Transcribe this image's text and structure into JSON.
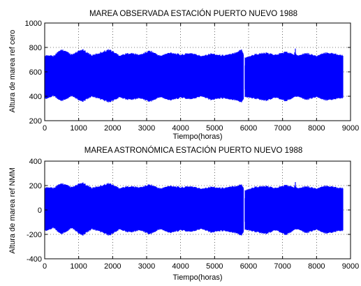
{
  "chart_data": [
    {
      "type": "line",
      "title": "MAREA OBSERVADA ESTACIÓN PUERTO NUEVO 1988",
      "xlabel": "Tiempo(horas)",
      "ylabel": "Altura de marea ref cero",
      "xlim": [
        0,
        9000
      ],
      "ylim": [
        200,
        1000
      ],
      "xticks": [
        "0",
        "1000",
        "2000",
        "3000",
        "4000",
        "5000",
        "6000",
        "7000",
        "8000",
        "9000"
      ],
      "yticks": [
        "200",
        "400",
        "600",
        "800",
        "1000"
      ],
      "grid": true,
      "color": "#0000ff",
      "x_range": [
        0,
        8784
      ],
      "mean": 550,
      "envelope_upper": [
        [
          0,
          740
        ],
        [
          250,
          735
        ],
        [
          500,
          790
        ],
        [
          800,
          745
        ],
        [
          1100,
          790
        ],
        [
          1400,
          740
        ],
        [
          1650,
          765
        ],
        [
          1900,
          790
        ],
        [
          2200,
          740
        ],
        [
          2500,
          760
        ],
        [
          2800,
          745
        ],
        [
          3100,
          780
        ],
        [
          3400,
          735
        ],
        [
          3700,
          765
        ],
        [
          4000,
          745
        ],
        [
          4300,
          760
        ],
        [
          4600,
          735
        ],
        [
          4900,
          755
        ],
        [
          5200,
          740
        ],
        [
          5500,
          750
        ],
        [
          5800,
          790
        ],
        [
          5900,
          720
        ],
        [
          6200,
          750
        ],
        [
          6500,
          760
        ],
        [
          6800,
          745
        ],
        [
          7100,
          770
        ],
        [
          7350,
          745
        ],
        [
          7370,
          820
        ],
        [
          7400,
          740
        ],
        [
          7700,
          760
        ],
        [
          8000,
          735
        ],
        [
          8300,
          765
        ],
        [
          8600,
          750
        ],
        [
          8784,
          740
        ]
      ],
      "envelope_lower": [
        [
          0,
          370
        ],
        [
          250,
          400
        ],
        [
          500,
          355
        ],
        [
          800,
          400
        ],
        [
          1100,
          350
        ],
        [
          1400,
          395
        ],
        [
          1650,
          370
        ],
        [
          1900,
          345
        ],
        [
          2200,
          385
        ],
        [
          2500,
          365
        ],
        [
          2800,
          380
        ],
        [
          3100,
          350
        ],
        [
          3400,
          390
        ],
        [
          3700,
          360
        ],
        [
          4000,
          385
        ],
        [
          4300,
          370
        ],
        [
          4600,
          395
        ],
        [
          4900,
          365
        ],
        [
          5200,
          380
        ],
        [
          5500,
          370
        ],
        [
          5800,
          345
        ],
        [
          5900,
          390
        ],
        [
          6200,
          375
        ],
        [
          6500,
          360
        ],
        [
          6800,
          385
        ],
        [
          7100,
          355
        ],
        [
          7400,
          395
        ],
        [
          7700,
          365
        ],
        [
          8000,
          390
        ],
        [
          8300,
          360
        ],
        [
          8600,
          375
        ],
        [
          8784,
          380
        ]
      ],
      "gaps": [
        5870
      ]
    },
    {
      "type": "line",
      "title": "MAREA ASTRONÓMICA ESTACIÓN PUERTO NUEVO 1988",
      "xlabel": "Tiempo(horas)",
      "ylabel": "Altura de marea ref NMM",
      "xlim": [
        0,
        9000
      ],
      "ylim": [
        -400,
        400
      ],
      "xticks": [
        "0",
        "1000",
        "2000",
        "3000",
        "4000",
        "5000",
        "6000",
        "7000",
        "8000",
        "9000"
      ],
      "yticks": [
        "-400",
        "-200",
        "0",
        "200",
        "400"
      ],
      "grid": true,
      "color": "#0000ff",
      "x_range": [
        0,
        8784
      ],
      "mean": 0,
      "envelope_upper": [
        [
          0,
          190
        ],
        [
          250,
          185
        ],
        [
          500,
          225
        ],
        [
          800,
          190
        ],
        [
          1100,
          230
        ],
        [
          1400,
          185
        ],
        [
          1650,
          205
        ],
        [
          1900,
          225
        ],
        [
          2200,
          185
        ],
        [
          2500,
          200
        ],
        [
          2800,
          190
        ],
        [
          3100,
          215
        ],
        [
          3400,
          180
        ],
        [
          3700,
          205
        ],
        [
          4000,
          190
        ],
        [
          4300,
          200
        ],
        [
          4600,
          180
        ],
        [
          4900,
          195
        ],
        [
          5200,
          185
        ],
        [
          5500,
          195
        ],
        [
          5800,
          215
        ],
        [
          5900,
          165
        ],
        [
          6200,
          195
        ],
        [
          6500,
          200
        ],
        [
          6800,
          185
        ],
        [
          7100,
          210
        ],
        [
          7350,
          190
        ],
        [
          7370,
          255
        ],
        [
          7400,
          185
        ],
        [
          7700,
          200
        ],
        [
          8000,
          180
        ],
        [
          8300,
          205
        ],
        [
          8600,
          190
        ],
        [
          8784,
          185
        ]
      ],
      "envelope_lower": [
        [
          0,
          -180
        ],
        [
          250,
          -150
        ],
        [
          500,
          -205
        ],
        [
          800,
          -150
        ],
        [
          1100,
          -215
        ],
        [
          1400,
          -160
        ],
        [
          1650,
          -185
        ],
        [
          1900,
          -215
        ],
        [
          2200,
          -165
        ],
        [
          2500,
          -190
        ],
        [
          2800,
          -170
        ],
        [
          3100,
          -205
        ],
        [
          3400,
          -160
        ],
        [
          3700,
          -195
        ],
        [
          4000,
          -170
        ],
        [
          4300,
          -185
        ],
        [
          4600,
          -160
        ],
        [
          4900,
          -190
        ],
        [
          5200,
          -175
        ],
        [
          5500,
          -185
        ],
        [
          5800,
          -215
        ],
        [
          5900,
          -165
        ],
        [
          6200,
          -185
        ],
        [
          6500,
          -200
        ],
        [
          6800,
          -170
        ],
        [
          7100,
          -210
        ],
        [
          7400,
          -160
        ],
        [
          7700,
          -195
        ],
        [
          8000,
          -165
        ],
        [
          8300,
          -200
        ],
        [
          8600,
          -180
        ],
        [
          8784,
          -175
        ]
      ],
      "gaps": [
        5870
      ]
    }
  ]
}
